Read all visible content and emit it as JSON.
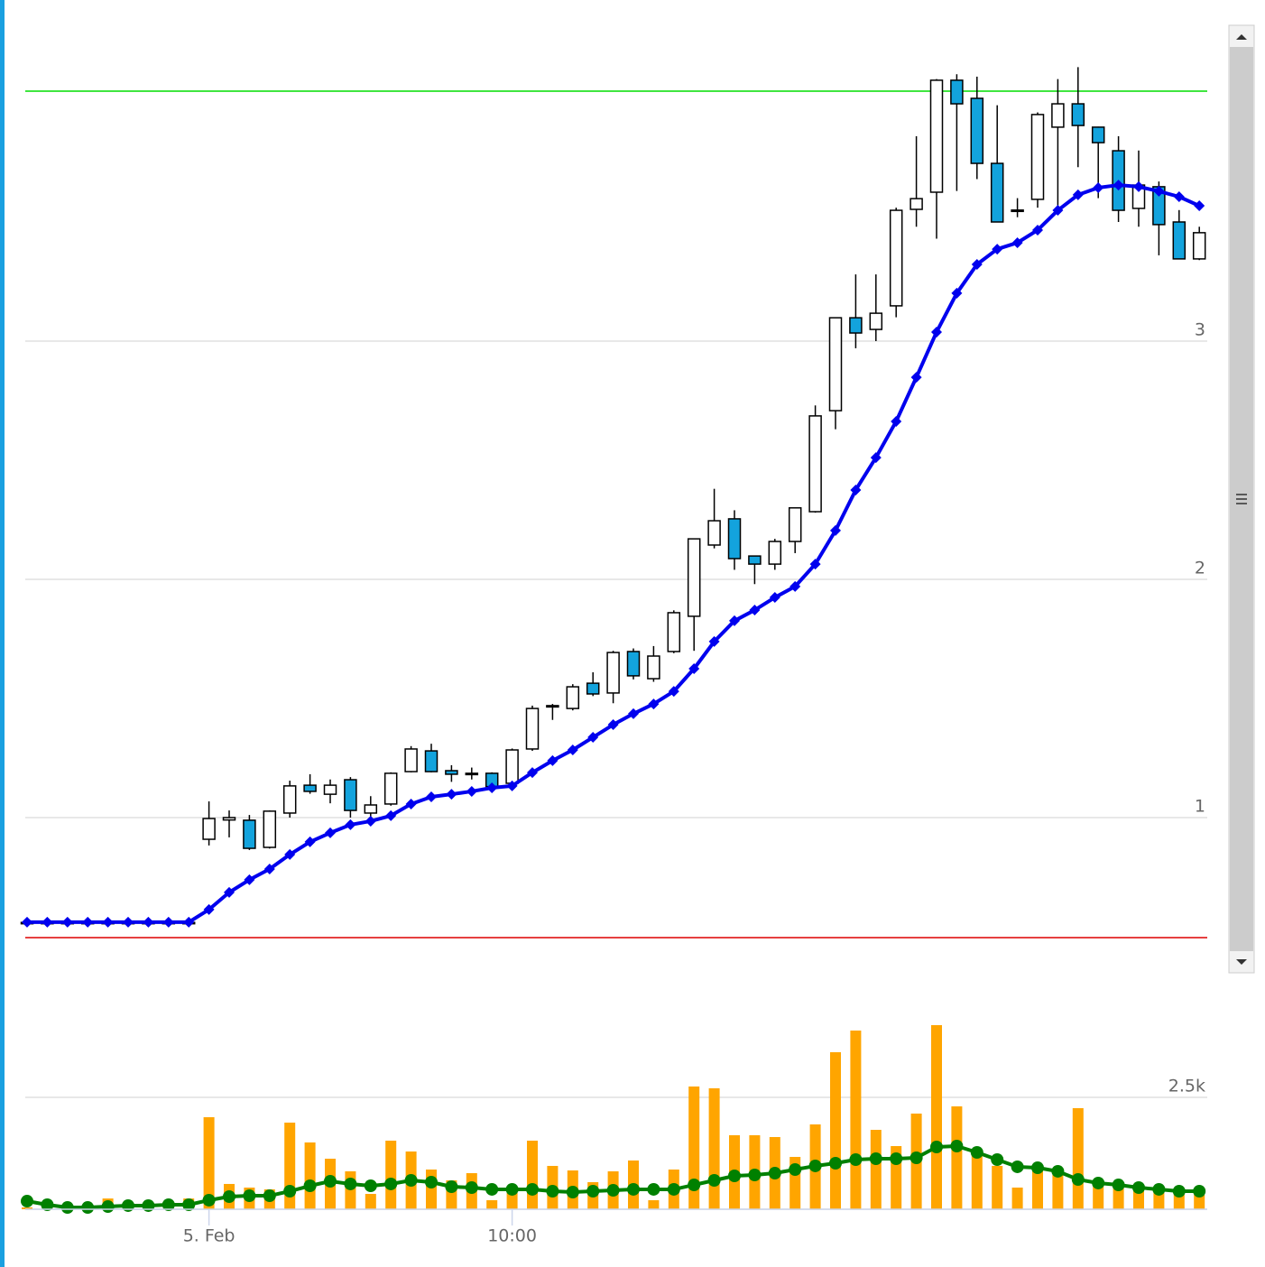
{
  "chart_data": [
    {
      "type": "candlestick",
      "open": [
        0.56,
        0.56,
        0.56,
        0.56,
        0.56,
        0.56,
        0.56,
        0.56,
        0.56,
        0.909,
        0.99,
        0.989,
        0.875,
        1.019,
        1.136,
        1.098,
        1.159,
        1.019,
        1.057,
        1.193,
        1.28,
        1.197,
        1.186,
        1.186,
        1.144,
        1.288,
        1.466,
        1.458,
        1.564,
        1.523,
        1.697,
        1.583,
        1.697,
        1.845,
        2.144,
        2.254,
        2.098,
        2.064,
        2.159,
        2.284,
        2.708,
        3.098,
        3.049,
        3.148,
        3.553,
        3.625,
        4.095,
        4.019,
        3.746,
        3.549,
        3.595,
        3.898,
        3.996,
        3.898,
        3.799,
        3.557,
        3.648,
        3.5,
        3.345
      ],
      "high": [
        0.57,
        0.57,
        0.57,
        0.57,
        0.57,
        0.57,
        0.57,
        0.57,
        0.57,
        1.068,
        1.03,
        1.011,
        1.03,
        1.155,
        1.182,
        1.16,
        1.17,
        1.09,
        1.19,
        1.3,
        1.31,
        1.22,
        1.21,
        1.19,
        1.29,
        1.47,
        1.477,
        1.56,
        1.61,
        1.7,
        1.71,
        1.72,
        1.87,
        2.17,
        2.38,
        2.29,
        2.1,
        2.17,
        2.3,
        2.73,
        3.1,
        3.28,
        3.28,
        3.56,
        3.86,
        4.1,
        4.12,
        4.11,
        3.99,
        3.6,
        3.96,
        4.1,
        4.15,
        3.9,
        3.86,
        3.8,
        3.67,
        3.55,
        3.48
      ],
      "low": [
        0.55,
        0.55,
        0.55,
        0.55,
        0.55,
        0.55,
        0.55,
        0.55,
        0.55,
        0.883,
        0.917,
        0.864,
        0.87,
        1.0,
        1.1,
        1.06,
        1.0,
        1.0,
        1.05,
        1.19,
        1.19,
        1.15,
        1.16,
        1.12,
        1.14,
        1.28,
        1.41,
        1.45,
        1.51,
        1.48,
        1.58,
        1.57,
        1.69,
        1.7,
        2.13,
        2.04,
        1.98,
        2.04,
        2.11,
        2.28,
        2.63,
        2.97,
        3.0,
        3.1,
        3.48,
        3.43,
        3.63,
        3.68,
        3.5,
        3.52,
        3.56,
        3.57,
        3.73,
        3.6,
        3.5,
        3.48,
        3.36,
        3.345,
        3.34
      ],
      "close": [
        0.56,
        0.56,
        0.56,
        0.56,
        0.56,
        0.56,
        0.56,
        0.56,
        0.56,
        0.996,
        1.0,
        0.871,
        1.027,
        1.133,
        1.11,
        1.136,
        1.03,
        1.053,
        1.186,
        1.288,
        1.193,
        1.182,
        1.182,
        1.13,
        1.284,
        1.458,
        1.47,
        1.549,
        1.519,
        1.693,
        1.595,
        1.678,
        1.86,
        2.17,
        2.246,
        2.087,
        2.064,
        2.159,
        2.3,
        2.686,
        3.098,
        3.034,
        3.117,
        3.549,
        3.598,
        4.095,
        3.996,
        3.746,
        3.5,
        3.55,
        3.951,
        3.996,
        3.905,
        3.833,
        3.549,
        3.655,
        3.489,
        3.345,
        3.455
      ],
      "up_color": "#ffffff",
      "down_color": "#13a3dd",
      "series": [
        {
          "type": "line",
          "color": "#0000ee",
          "values": [
            0.561,
            0.561,
            0.561,
            0.561,
            0.561,
            0.561,
            0.561,
            0.561,
            0.561,
            0.614,
            0.686,
            0.739,
            0.784,
            0.845,
            0.898,
            0.936,
            0.97,
            0.985,
            1.008,
            1.057,
            1.087,
            1.098,
            1.11,
            1.125,
            1.133,
            1.189,
            1.239,
            1.284,
            1.337,
            1.39,
            1.436,
            1.477,
            1.53,
            1.625,
            1.739,
            1.826,
            1.871,
            1.924,
            1.97,
            2.064,
            2.205,
            2.375,
            2.511,
            2.663,
            2.848,
            3.038,
            3.201,
            3.322,
            3.386,
            3.413,
            3.466,
            3.549,
            3.614,
            3.644,
            3.655,
            3.648,
            3.629,
            3.606,
            3.568
          ]
        }
      ],
      "plot_lines": [
        {
          "value": 4.049,
          "color": "#00dd00"
        },
        {
          "value": 0.496,
          "color": "#dd0000"
        }
      ],
      "ylim": [
        0.3,
        4.32
      ],
      "yticks": [
        1,
        2,
        3
      ],
      "grid": true
    },
    {
      "type": "bar",
      "categories": [
        null,
        null,
        null,
        null,
        null,
        null,
        null,
        null,
        null,
        "5. Feb",
        null,
        null,
        null,
        null,
        null,
        null,
        null,
        null,
        null,
        null,
        null,
        null,
        null,
        null,
        "10:00",
        null,
        null,
        null,
        null,
        null,
        null,
        null,
        null,
        null,
        null,
        null,
        null,
        null,
        null,
        null,
        null,
        null,
        null,
        null,
        null,
        null,
        null,
        null,
        null,
        null,
        null,
        null,
        null,
        null,
        null,
        null,
        null,
        null,
        null
      ],
      "values": [
        40,
        40,
        40,
        40,
        240,
        140,
        120,
        80,
        240,
        2056,
        565,
        484,
        444,
        1935,
        1492,
        1129,
        847,
        343,
        1532,
        1290,
        887,
        645,
        806,
        202,
        363,
        1532,
        968,
        867,
        605,
        847,
        1089,
        202,
        887,
        2742,
        2702,
        1653,
        1653,
        1613,
        1169,
        1895,
        3508,
        3992,
        1774,
        1411,
        2137,
        4113,
        2298,
        1290,
        968,
        484,
        887,
        766,
        2258,
        565,
        484,
        484,
        403,
        403,
        323
      ],
      "color": "#ffa500",
      "series": [
        {
          "type": "line",
          "color": "#008000",
          "values": [
            181,
            101,
            40,
            40,
            60,
            81,
            81,
            101,
            101,
            202,
            282,
            302,
            302,
            403,
            524,
            625,
            565,
            524,
            565,
            645,
            605,
            504,
            484,
            444,
            444,
            444,
            403,
            383,
            403,
            423,
            444,
            444,
            444,
            544,
            645,
            746,
            766,
            806,
            887,
            968,
            1028,
            1109,
            1129,
            1129,
            1149,
            1391,
            1411,
            1270,
            1109,
            948,
            927,
            847,
            665,
            585,
            544,
            484,
            444,
            403,
            403
          ]
        }
      ],
      "ylim": [
        0,
        5060
      ],
      "yticks": [
        0,
        {
          "value": 2500,
          "label": "2.5k"
        }
      ],
      "grid": true
    }
  ]
}
